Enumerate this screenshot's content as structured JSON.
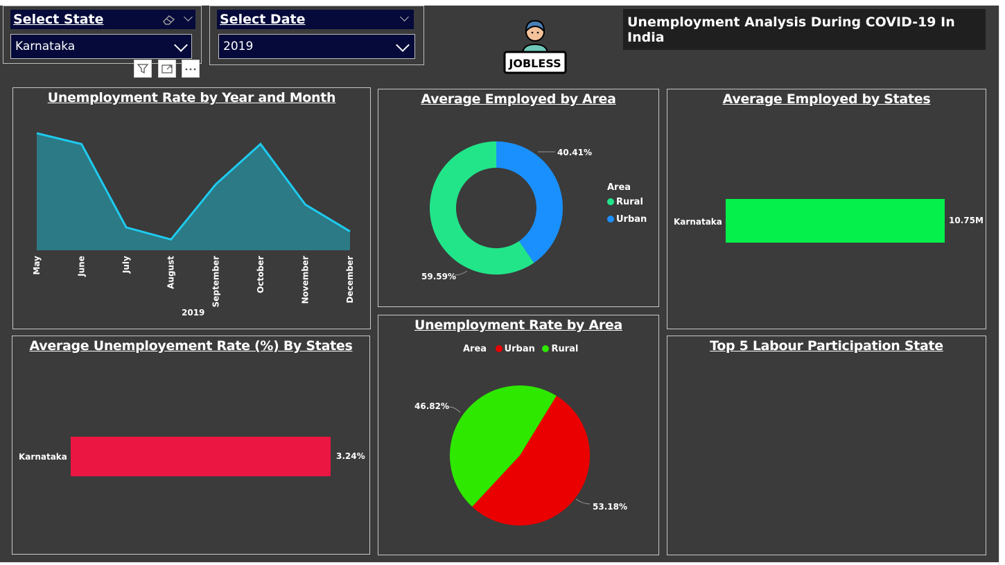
{
  "slicers": {
    "state": {
      "header": "Select State",
      "value": "Karnataka"
    },
    "date": {
      "header": "Select Date",
      "value": "2019"
    }
  },
  "logo": {
    "text": "JOBLESS"
  },
  "dashboard_title": "Unemployment Analysis During COVID-19 In India",
  "colors": {
    "line": "#1ecbf0",
    "area_fill": "#2b7a86",
    "employed_rural": "#22e58a",
    "employed_urban": "#1a90ff",
    "employed_states_bar": "#05f04a",
    "unemp_states_bar": "#ec1642",
    "unemp_urban": "#ea0000",
    "unemp_rural": "#2ee800",
    "dark_navy": "#050a3a"
  },
  "visual_header_icons": [
    "filter-icon",
    "focus-mode-icon",
    "more-options-icon"
  ],
  "panels": {
    "line_chart": {
      "title": "Unemployment Rate by Year and Month",
      "year_label": "2019"
    },
    "employed_area": {
      "title": "Average Employed by Area",
      "legend_title": "Area",
      "labels": [
        "59.59%",
        "40.41%"
      ]
    },
    "employed_states": {
      "title": "Average Employed by States",
      "category": "Karnataka",
      "value_label": "10.75M"
    },
    "unemp_states": {
      "title": "Average Unemployement Rate (%) By States",
      "category": "Karnataka",
      "value_label": "3.24%"
    },
    "unemp_area": {
      "title": "Unemployment Rate by Area",
      "legend_title": "Area",
      "labels": [
        "46.82%",
        "53.18%"
      ]
    },
    "labour": {
      "title": "Top 5 Labour Participation State"
    }
  },
  "chart_data": [
    {
      "type": "area",
      "categories": [
        "May",
        "June",
        "July",
        "August",
        "September",
        "October",
        "November",
        "December"
      ],
      "values": [
        8.7,
        7.9,
        1.7,
        0.8,
        4.9,
        7.9,
        3.4,
        1.4
      ],
      "xlabel": "2019",
      "ylabel": "",
      "ylim": [
        0,
        10
      ]
    },
    {
      "type": "pie",
      "donut": true,
      "categories": [
        "Rural",
        "Urban"
      ],
      "values": [
        59.59,
        40.41
      ],
      "legend_title": "Area",
      "legend_position": "right"
    },
    {
      "type": "bar",
      "orientation": "horizontal",
      "categories": [
        "Karnataka"
      ],
      "values": [
        10.75
      ],
      "unit": "M"
    },
    {
      "type": "bar",
      "orientation": "horizontal",
      "categories": [
        "Karnataka"
      ],
      "values": [
        3.24
      ],
      "unit": "%"
    },
    {
      "type": "pie",
      "categories": [
        "Urban",
        "Rural"
      ],
      "values": [
        53.18,
        46.82
      ],
      "legend_title": "Area",
      "legend_position": "top"
    }
  ]
}
